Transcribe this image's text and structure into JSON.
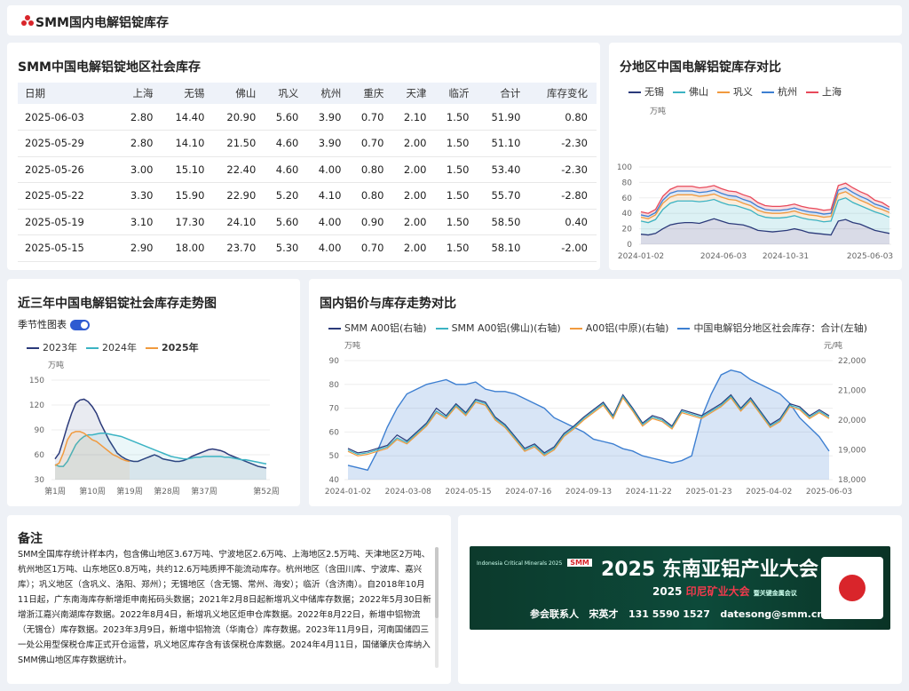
{
  "header": {
    "title": "SMM国内电解铝锭库存"
  },
  "table_card": {
    "title": "SMM中国电解铝锭地区社会库存",
    "columns": [
      "日期",
      "上海",
      "无锡",
      "佛山",
      "巩义",
      "杭州",
      "重庆",
      "天津",
      "临沂",
      "合计",
      "库存变化"
    ],
    "rows": [
      [
        "2025-06-03",
        "2.80",
        "14.40",
        "20.90",
        "5.60",
        "3.90",
        "0.70",
        "2.10",
        "1.50",
        "51.90",
        "0.80"
      ],
      [
        "2025-05-29",
        "2.80",
        "14.10",
        "21.50",
        "4.60",
        "3.90",
        "0.70",
        "2.00",
        "1.50",
        "51.10",
        "-2.30"
      ],
      [
        "2025-05-26",
        "3.00",
        "15.10",
        "22.40",
        "4.60",
        "4.00",
        "0.80",
        "2.00",
        "1.50",
        "53.40",
        "-2.30"
      ],
      [
        "2025-05-22",
        "3.30",
        "15.90",
        "22.90",
        "5.20",
        "4.10",
        "0.80",
        "2.00",
        "1.50",
        "55.70",
        "-2.80"
      ],
      [
        "2025-05-19",
        "3.10",
        "17.30",
        "24.10",
        "5.60",
        "4.00",
        "0.90",
        "2.00",
        "1.50",
        "58.50",
        "0.40"
      ],
      [
        "2025-05-15",
        "2.90",
        "18.00",
        "23.70",
        "5.30",
        "4.00",
        "0.70",
        "2.00",
        "1.50",
        "58.10",
        "-2.00"
      ]
    ]
  },
  "region_card": {
    "title": "分地区中国电解铝锭库存对比",
    "unit": "万吨",
    "colors": {
      "无锡": "#2b3a7a",
      "佛山": "#3bb3c3",
      "巩义": "#f19a3e",
      "杭州": "#3d7fd1",
      "上海": "#e8495a"
    }
  },
  "season_card": {
    "title": "近三年中国电解铝锭社会库存走势图",
    "toggle_label": "季节性图表",
    "unit": "万吨"
  },
  "price_card": {
    "title": "国内铝价与库存走势对比",
    "left_unit": "万吨",
    "right_unit": "元/吨"
  },
  "notes": {
    "title": "备注",
    "text": "SMM全国库存统计样本内，包含佛山地区3.67万吨、宁波地区2.6万吨、上海地区2.5万吨、天津地区2万吨、杭州地区1万吨、山东地区0.8万吨，共约12.6万吨质押不能流动库存。杭州地区（含田川库、宁波库、嘉兴库）；巩义地区（含巩义、洛阳、郑州）；无锡地区（含无锡、常州、海安）；临沂（含济南）。自2018年10月11日起，广东南海库存新增炬申南拓码头数据；2021年2月8日起新增巩义中储库存数据；2022年5月30日新增浙江嘉兴南湖库存数据。2022年8月4日，新增巩义地区炬申仓库数据。2022年8月22日，新增中铝物流（无锡仓）库存数据。2023年3月9日，新增中铝物流（华南仓）库存数据。2023年11月9日，河南国储四三一处公用型保税仓库正式开仓运营，巩义地区库存含有该保税仓库数据。2024年4月11日，国储肇庆仓库纳入SMM佛山地区库存数据统计。"
  },
  "ad": {
    "year": "2025",
    "headline": "东南亚铝产业大会",
    "sub_year": "2025",
    "sub": "印尼矿业大会",
    "sub_note": "暨关键金属会议",
    "contact_label": "参会联系人",
    "contact_name": "宋英才",
    "phone": "131 5590 1527",
    "email": "datesong@smm.cn",
    "logo_text": "SMM",
    "partner_text": "Indonesia Critical Minerals 2025"
  },
  "chart_data": [
    {
      "type": "area",
      "title": "分地区中国电解铝锭库存对比",
      "ylabel": "万吨",
      "ylim": [
        0,
        100
      ],
      "yticks": [
        0,
        20,
        40,
        60,
        80,
        100
      ],
      "x_tick_labels": [
        "2024-01-02",
        "2024-06-03",
        "2024-10-31",
        "2025-06-03"
      ],
      "stacked": true,
      "series": [
        {
          "name": "无锡",
          "values": [
            13,
            12,
            14,
            20,
            25,
            27,
            28,
            28,
            27,
            30,
            33,
            30,
            27,
            26,
            25,
            22,
            18,
            17,
            16,
            17,
            18,
            20,
            18,
            15,
            14,
            13,
            12,
            30,
            32,
            28,
            26,
            22,
            18,
            16,
            14
          ]
        },
        {
          "name": "佛山",
          "values": [
            17,
            16,
            18,
            25,
            28,
            29,
            28,
            28,
            28,
            26,
            25,
            24,
            24,
            24,
            22,
            22,
            20,
            18,
            18,
            17,
            17,
            17,
            16,
            17,
            17,
            16,
            18,
            27,
            28,
            26,
            24,
            24,
            24,
            23,
            21
          ]
        },
        {
          "name": "巩义",
          "values": [
            5,
            5,
            6,
            8,
            8,
            8,
            8,
            8,
            7,
            7,
            7,
            7,
            7,
            7,
            6,
            6,
            6,
            6,
            6,
            6,
            6,
            6,
            6,
            6,
            6,
            6,
            6,
            8,
            8,
            8,
            7,
            7,
            6,
            6,
            6
          ]
        },
        {
          "name": "杭州",
          "values": [
            3,
            3,
            3,
            4,
            5,
            5,
            5,
            5,
            5,
            5,
            5,
            5,
            5,
            5,
            5,
            5,
            5,
            4,
            4,
            4,
            4,
            4,
            4,
            4,
            4,
            4,
            4,
            5,
            5,
            5,
            5,
            5,
            4,
            4,
            4
          ]
        },
        {
          "name": "上海",
          "values": [
            4,
            4,
            4,
            5,
            5,
            6,
            6,
            6,
            6,
            6,
            6,
            6,
            6,
            6,
            6,
            6,
            5,
            5,
            5,
            5,
            5,
            5,
            5,
            5,
            5,
            5,
            5,
            6,
            6,
            6,
            6,
            6,
            5,
            5,
            3
          ]
        }
      ]
    },
    {
      "type": "line",
      "title": "近三年中国电解铝锭社会库存走势图",
      "ylabel": "万吨",
      "ylim": [
        30,
        150
      ],
      "yticks": [
        30,
        60,
        90,
        120,
        150
      ],
      "x_tick_labels": [
        "第1周",
        "第10周",
        "第19周",
        "第28周",
        "第37周",
        "第52周"
      ],
      "series": [
        {
          "name": "2023年",
          "values": [
            55,
            62,
            78,
            95,
            110,
            122,
            126,
            127,
            124,
            118,
            110,
            98,
            88,
            78,
            70,
            62,
            58,
            55,
            53,
            52,
            52,
            54,
            56,
            58,
            60,
            58,
            55,
            54,
            53,
            52,
            52,
            53,
            55,
            58,
            60,
            62,
            64,
            66,
            67,
            66,
            65,
            63,
            60,
            58,
            56,
            54,
            52,
            50,
            48,
            46,
            45,
            44
          ]
        },
        {
          "name": "2024年",
          "values": [
            48,
            46,
            46,
            52,
            62,
            72,
            78,
            82,
            84,
            84,
            85,
            86,
            86,
            85,
            84,
            83,
            82,
            80,
            78,
            76,
            74,
            72,
            70,
            68,
            66,
            64,
            62,
            60,
            58,
            57,
            56,
            55,
            55,
            56,
            57,
            57,
            58,
            58,
            58,
            58,
            58,
            57,
            57,
            56,
            55,
            54,
            54,
            53,
            52,
            51,
            50,
            49
          ]
        },
        {
          "name": "2025年",
          "values": [
            47,
            50,
            62,
            78,
            86,
            88,
            88,
            86,
            82,
            78,
            76,
            72,
            68,
            64,
            60,
            58,
            55,
            53,
            51.9
          ]
        }
      ]
    },
    {
      "type": "line",
      "title": "国内铝价与库存走势对比",
      "left_ylim": [
        40,
        90
      ],
      "left_yticks": [
        40,
        50,
        60,
        70,
        80,
        90
      ],
      "right_ylim": [
        18000,
        22000
      ],
      "right_yticks": [
        "18,000",
        "19,000",
        "20,000",
        "21,000",
        "22,000"
      ],
      "x_tick_labels": [
        "2024-01-02",
        "2024-03-08",
        "2024-05-15",
        "2024-07-16",
        "2024-09-13",
        "2024-11-22",
        "2025-01-23",
        "2025-04-02",
        "2025-06-03"
      ],
      "series": [
        {
          "name": "SMM A00铝(右轴)",
          "axis": "right",
          "values": [
            19050,
            18900,
            18950,
            19050,
            19150,
            19500,
            19300,
            19600,
            19900,
            20400,
            20150,
            20550,
            20250,
            20700,
            20600,
            20100,
            19850,
            19450,
            19050,
            19200,
            18900,
            19100,
            19550,
            19800,
            20100,
            20350,
            20600,
            20150,
            20850,
            20400,
            19900,
            20150,
            20050,
            19800,
            20350,
            20250,
            20150,
            20350,
            20550,
            20850,
            20400,
            20750,
            20300,
            19850,
            20050,
            20550,
            20450,
            20150,
            20350,
            20150
          ]
        },
        {
          "name": "SMM A00铝(佛山)(右轴)",
          "axis": "right",
          "values": [
            19000,
            18850,
            18900,
            19000,
            19100,
            19400,
            19250,
            19550,
            19850,
            20300,
            20100,
            20500,
            20200,
            20650,
            20550,
            20050,
            19800,
            19400,
            19000,
            19150,
            18850,
            19050,
            19500,
            19750,
            20050,
            20300,
            20550,
            20100,
            20800,
            20350,
            19850,
            20100,
            20000,
            19750,
            20300,
            20200,
            20100,
            20300,
            20500,
            20800,
            20350,
            20700,
            20250,
            19800,
            20000,
            20500,
            20400,
            20100,
            20300,
            20100
          ]
        },
        {
          "name": "A00铝(中原)(右轴)",
          "axis": "right",
          "values": [
            18950,
            18800,
            18850,
            18950,
            19050,
            19350,
            19200,
            19500,
            19800,
            20250,
            20050,
            20450,
            20150,
            20600,
            20500,
            20000,
            19750,
            19350,
            18950,
            19100,
            18800,
            19000,
            19450,
            19700,
            20000,
            20250,
            20500,
            20050,
            20750,
            20300,
            19800,
            20050,
            19950,
            19700,
            20250,
            20150,
            20050,
            20250,
            20450,
            20750,
            20300,
            20650,
            20200,
            19750,
            19950,
            20450,
            20350,
            20050,
            20250,
            20050
          ]
        },
        {
          "name": "中国电解铝分地区社会库存：合计(左轴)",
          "axis": "left",
          "values": [
            46,
            45,
            44,
            52,
            62,
            70,
            76,
            78,
            80,
            81,
            82,
            80,
            80,
            81,
            78,
            77,
            77,
            76,
            74,
            72,
            70,
            66,
            64,
            62,
            60,
            57,
            56,
            55,
            53,
            52,
            50,
            49,
            48,
            47,
            48,
            50,
            66,
            76,
            84,
            86,
            85,
            82,
            80,
            78,
            76,
            72,
            66,
            62,
            58,
            52
          ]
        }
      ]
    }
  ]
}
